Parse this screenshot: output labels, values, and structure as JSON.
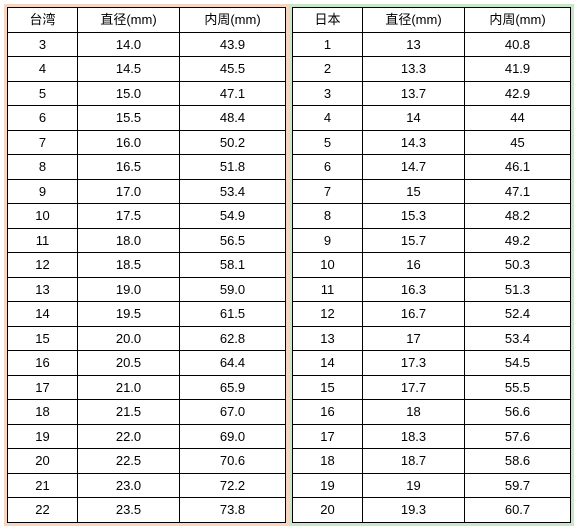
{
  "left": {
    "headers": [
      "台湾",
      "直径(mm)",
      "内周(mm)"
    ],
    "accent_color": "#f7d5c0",
    "rows": [
      [
        "3",
        "14.0",
        "43.9"
      ],
      [
        "4",
        "14.5",
        "45.5"
      ],
      [
        "5",
        "15.0",
        "47.1"
      ],
      [
        "6",
        "15.5",
        "48.4"
      ],
      [
        "7",
        "16.0",
        "50.2"
      ],
      [
        "8",
        "16.5",
        "51.8"
      ],
      [
        "9",
        "17.0",
        "53.4"
      ],
      [
        "10",
        "17.5",
        "54.9"
      ],
      [
        "11",
        "18.0",
        "56.5"
      ],
      [
        "12",
        "18.5",
        "58.1"
      ],
      [
        "13",
        "19.0",
        "59.0"
      ],
      [
        "14",
        "19.5",
        "61.5"
      ],
      [
        "15",
        "20.0",
        "62.8"
      ],
      [
        "16",
        "20.5",
        "64.4"
      ],
      [
        "17",
        "21.0",
        "65.9"
      ],
      [
        "18",
        "21.5",
        "67.0"
      ],
      [
        "19",
        "22.0",
        "69.0"
      ],
      [
        "20",
        "22.5",
        "70.6"
      ],
      [
        "21",
        "23.0",
        "72.2"
      ],
      [
        "22",
        "23.5",
        "73.8"
      ]
    ]
  },
  "right": {
    "headers": [
      "日本",
      "直径(mm)",
      "内周(mm)"
    ],
    "accent_color": "#c6e8c6",
    "rows": [
      [
        "1",
        "13",
        "40.8"
      ],
      [
        "2",
        "13.3",
        "41.9"
      ],
      [
        "3",
        "13.7",
        "42.9"
      ],
      [
        "4",
        "14",
        "44"
      ],
      [
        "5",
        "14.3",
        "45"
      ],
      [
        "6",
        "14.7",
        "46.1"
      ],
      [
        "7",
        "15",
        "47.1"
      ],
      [
        "8",
        "15.3",
        "48.2"
      ],
      [
        "9",
        "15.7",
        "49.2"
      ],
      [
        "10",
        "16",
        "50.3"
      ],
      [
        "11",
        "16.3",
        "51.3"
      ],
      [
        "12",
        "16.7",
        "52.4"
      ],
      [
        "13",
        "17",
        "53.4"
      ],
      [
        "14",
        "17.3",
        "54.5"
      ],
      [
        "15",
        "17.7",
        "55.5"
      ],
      [
        "16",
        "18",
        "56.6"
      ],
      [
        "17",
        "18.3",
        "57.6"
      ],
      [
        "18",
        "18.7",
        "58.6"
      ],
      [
        "19",
        "19",
        "59.7"
      ],
      [
        "20",
        "19.3",
        "60.7"
      ]
    ]
  }
}
